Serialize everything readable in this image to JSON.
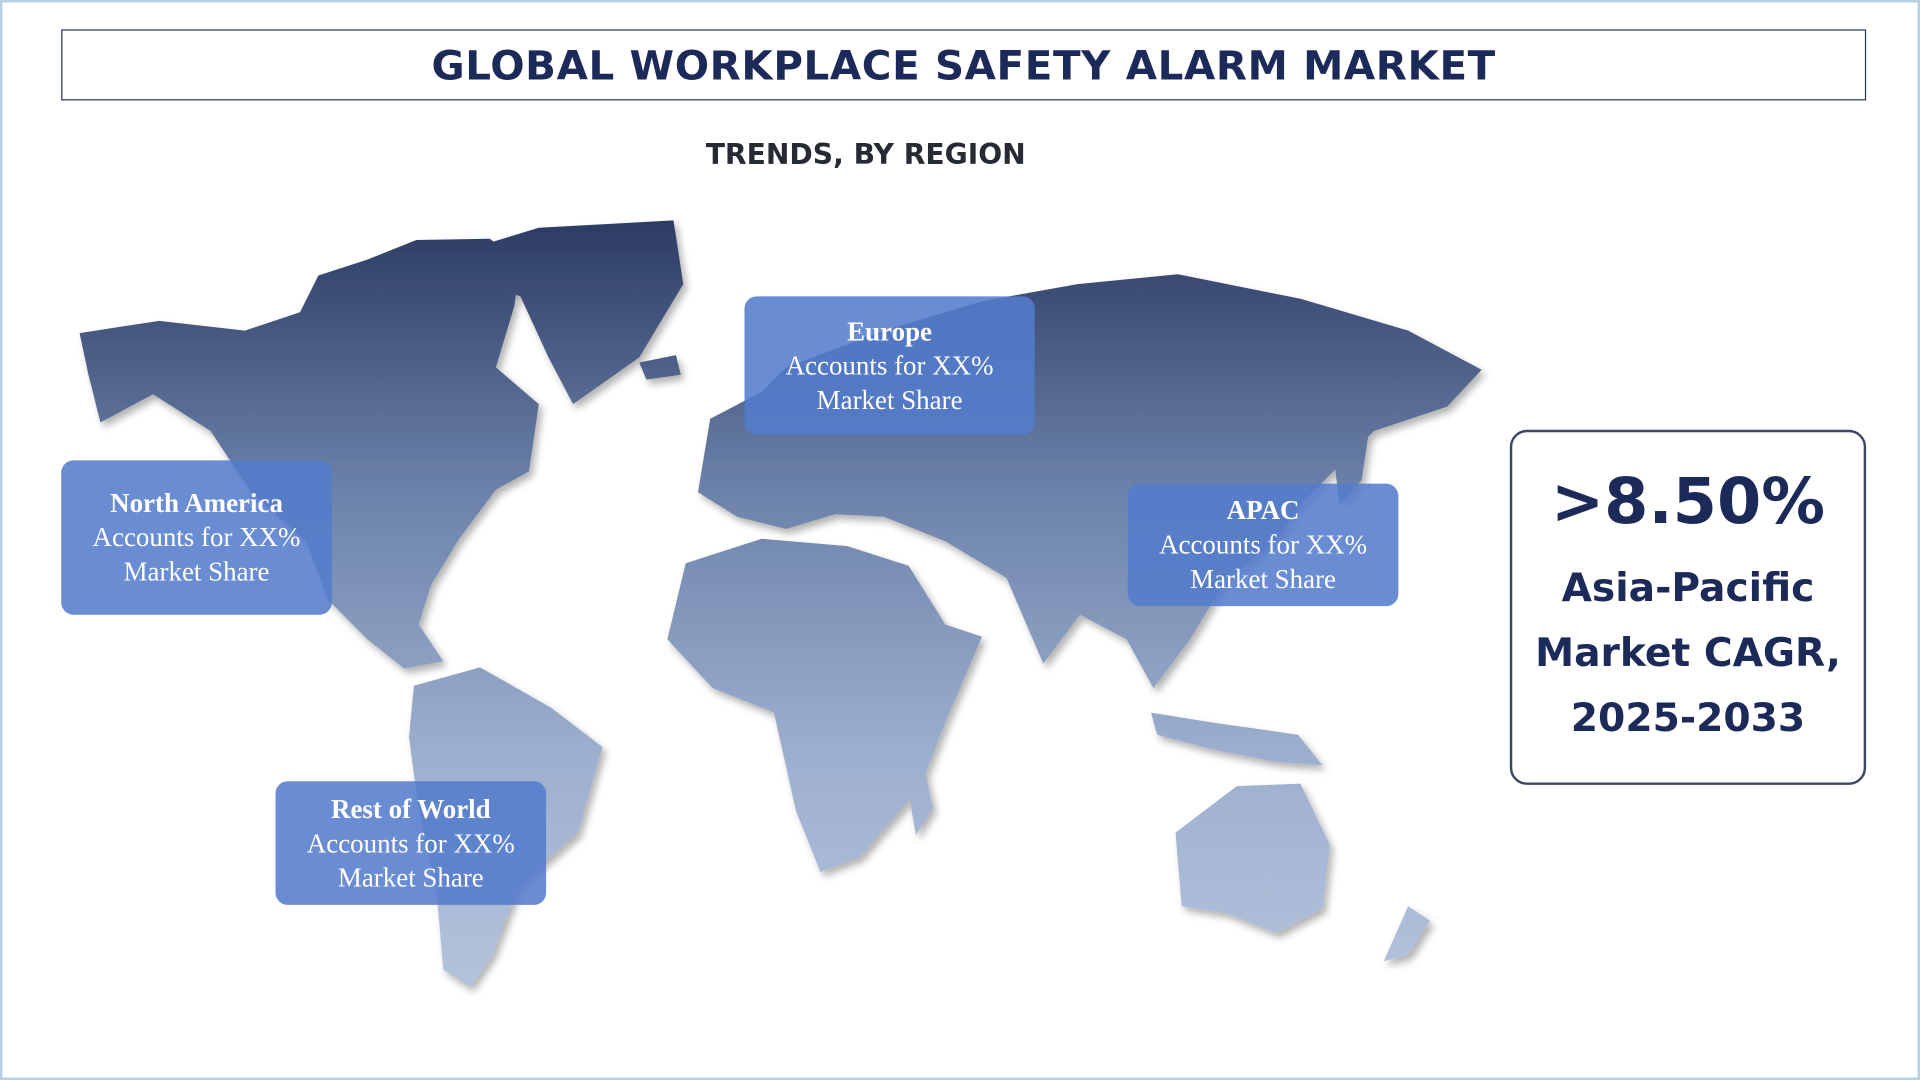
{
  "header": {
    "title": "GLOBAL WORKPLACE SAFETY ALARM MARKET",
    "subtitle": "TRENDS, BY REGION"
  },
  "map": {
    "icon": "world-map",
    "gradient_top": "#2c3b63",
    "gradient_bottom": "#b4c3dc"
  },
  "regions": [
    {
      "name": "North America",
      "line1": "Accounts for XX%",
      "line2": "Market Share"
    },
    {
      "name": "Europe",
      "line1": "Accounts for XX%",
      "line2": "Market Share"
    },
    {
      "name": "APAC",
      "line1": "Accounts for XX%",
      "line2": "Market Share"
    },
    {
      "name": "Rest of World",
      "line1": "Accounts for XX%",
      "line2": "Market Share"
    }
  ],
  "cagr": {
    "value": ">8.50%",
    "line1": "Asia-Pacific",
    "line2": "Market CAGR,",
    "line3": "2025-2033"
  },
  "colors": {
    "title": "#1c2a5a",
    "region_box": "#547ccc"
  }
}
